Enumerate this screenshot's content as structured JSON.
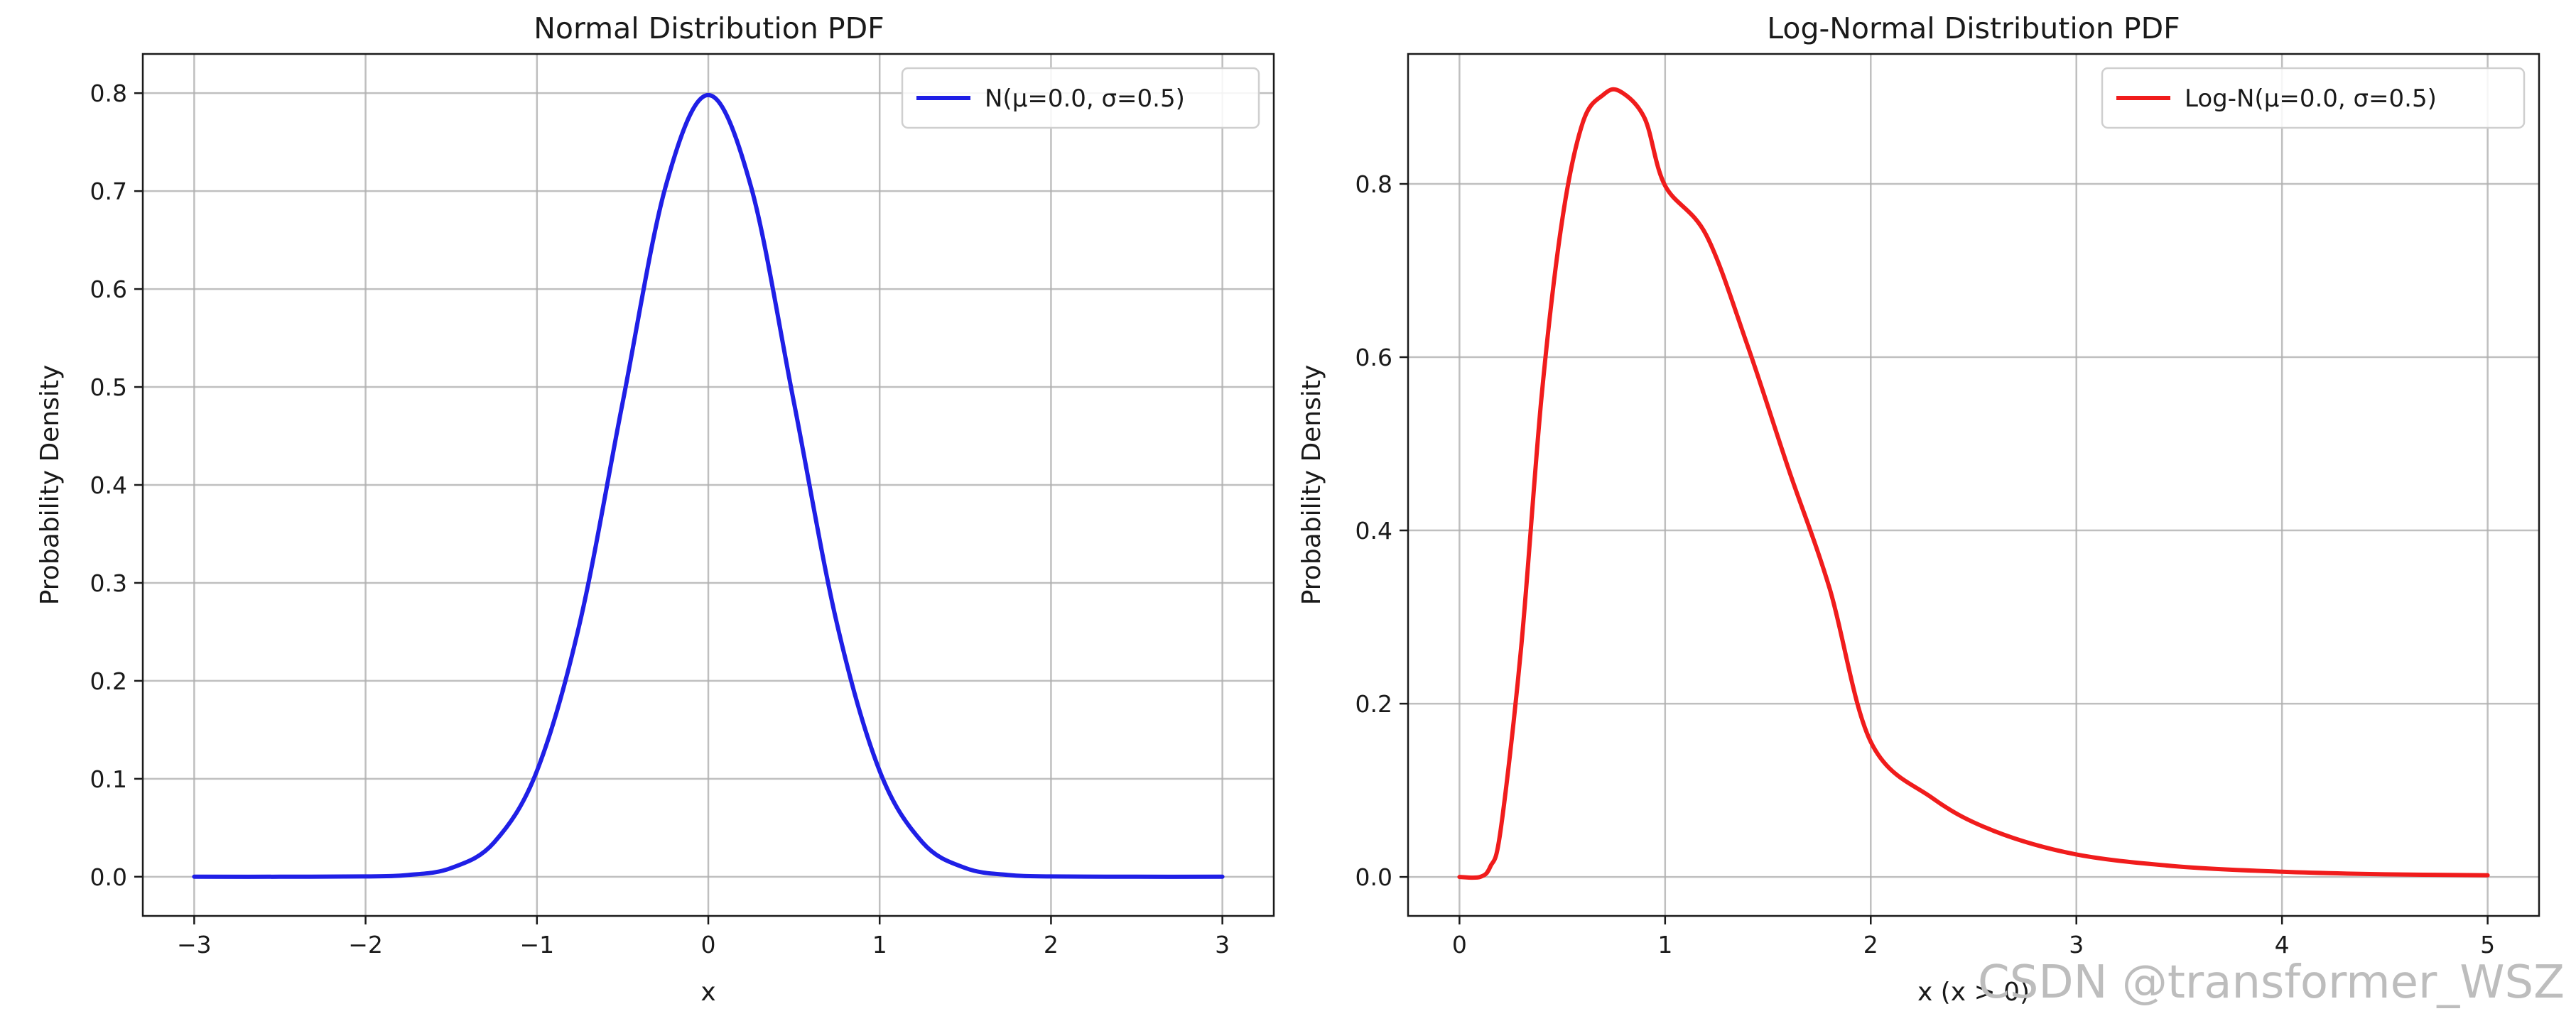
{
  "watermark": "CSDN @transformer_WSZ",
  "chart_data": [
    {
      "type": "line",
      "title": "Normal Distribution PDF",
      "xlabel": "x",
      "ylabel": "Probability Density",
      "xlim": [
        -3.3,
        3.3
      ],
      "ylim": [
        -0.04,
        0.84
      ],
      "xticks": [
        -3,
        -2,
        -1,
        0,
        1,
        2,
        3
      ],
      "xtick_labels": [
        "−3",
        "−2",
        "−1",
        "0",
        "1",
        "2",
        "3"
      ],
      "yticks": [
        0.0,
        0.1,
        0.2,
        0.3,
        0.4,
        0.5,
        0.6,
        0.7,
        0.8
      ],
      "ytick_labels": [
        "0.0",
        "0.1",
        "0.2",
        "0.3",
        "0.4",
        "0.5",
        "0.6",
        "0.7",
        "0.8"
      ],
      "grid": true,
      "legend_position": "top-right",
      "series": [
        {
          "name": "N(μ=0.0, σ=0.5)",
          "color": "#1f1fe6",
          "x": [
            -3.0,
            -2.5,
            -2.0,
            -1.75,
            -1.5,
            -1.25,
            -1.0,
            -0.75,
            -0.5,
            -0.25,
            0.0,
            0.25,
            0.5,
            0.75,
            1.0,
            1.25,
            1.5,
            1.75,
            2.0,
            2.5,
            3.0
          ],
          "y": [
            0.0,
            0.0,
            0.0003,
            0.0018,
            0.0089,
            0.035,
            0.108,
            0.259,
            0.484,
            0.704,
            0.798,
            0.704,
            0.484,
            0.259,
            0.108,
            0.035,
            0.0089,
            0.0018,
            0.0003,
            0.0,
            0.0
          ]
        }
      ]
    },
    {
      "type": "line",
      "title": "Log-Normal Distribution PDF",
      "xlabel": "x (x > 0)",
      "ylabel": "Probability Density",
      "xlim": [
        -0.25,
        5.25
      ],
      "ylim": [
        -0.045,
        0.95
      ],
      "xticks": [
        0,
        1,
        2,
        3,
        4,
        5
      ],
      "xtick_labels": [
        "0",
        "1",
        "2",
        "3",
        "4",
        "5"
      ],
      "yticks": [
        0.0,
        0.2,
        0.4,
        0.6,
        0.8
      ],
      "ytick_labels": [
        "0.0",
        "0.2",
        "0.4",
        "0.6",
        "0.8"
      ],
      "grid": true,
      "legend_position": "top-right",
      "series": [
        {
          "name": "Log-N(μ=0.0, σ=0.5)",
          "color": "#f01c1c",
          "x": [
            0.0,
            0.1,
            0.15,
            0.2,
            0.3,
            0.4,
            0.5,
            0.6,
            0.7,
            0.78,
            0.9,
            1.0,
            1.2,
            1.4,
            1.6,
            1.8,
            2.0,
            2.3,
            2.6,
            3.0,
            3.5,
            4.0,
            4.5,
            5.0
          ],
          "y": [
            0.0,
            0.0,
            0.012,
            0.054,
            0.265,
            0.556,
            0.759,
            0.871,
            0.903,
            0.907,
            0.876,
            0.798,
            0.741,
            0.614,
            0.471,
            0.333,
            0.156,
            0.091,
            0.053,
            0.026,
            0.012,
            0.006,
            0.003,
            0.002
          ]
        }
      ]
    }
  ]
}
